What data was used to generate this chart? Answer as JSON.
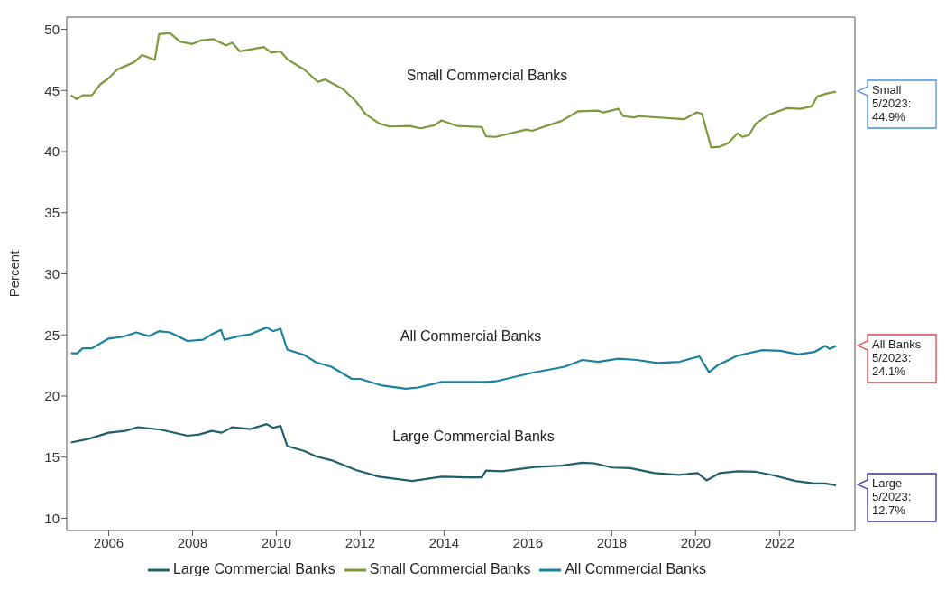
{
  "chart_data": {
    "type": "line",
    "ylabel": "Percent",
    "xlim": [
      2005.0,
      2023.8
    ],
    "xticks": [
      2006,
      2008,
      2010,
      2012,
      2014,
      2016,
      2018,
      2020,
      2022
    ],
    "ylim": [
      9,
      51
    ],
    "yticks": [
      10,
      15,
      20,
      25,
      30,
      35,
      40,
      45,
      50
    ],
    "grid": false,
    "legend": "bottom",
    "marker": "none",
    "line_style": "solid",
    "series": [
      {
        "name": "Large Commercial Banks",
        "color": "#1f5f6e",
        "x": [
          2005.1,
          2005.53,
          2006.0,
          2006.39,
          2006.7,
          2007.24,
          2007.88,
          2008.16,
          2008.46,
          2008.7,
          2008.95,
          2009.38,
          2009.77,
          2009.92,
          2010.1,
          2010.26,
          2010.67,
          2010.95,
          2011.31,
          2011.9,
          2012.45,
          2013.24,
          2013.94,
          2014.52,
          2014.9,
          2015.0,
          2015.38,
          2016.17,
          2016.8,
          2017.3,
          2017.58,
          2018.01,
          2018.44,
          2019.02,
          2019.6,
          2020.05,
          2020.26,
          2020.58,
          2021.0,
          2021.44,
          2021.87,
          2022.38,
          2022.83,
          2023.09,
          2023.35
        ],
        "values": [
          16.2,
          16.5,
          17.0,
          17.15,
          17.45,
          17.25,
          16.75,
          16.85,
          17.15,
          17.0,
          17.45,
          17.3,
          17.7,
          17.4,
          17.55,
          15.9,
          15.5,
          15.05,
          14.75,
          13.95,
          13.4,
          13.05,
          13.4,
          13.35,
          13.35,
          13.9,
          13.85,
          14.2,
          14.3,
          14.55,
          14.5,
          14.15,
          14.1,
          13.7,
          13.55,
          13.7,
          13.1,
          13.7,
          13.85,
          13.8,
          13.5,
          13.05,
          12.85,
          12.85,
          12.7
        ]
      },
      {
        "name": "Small Commercial Banks",
        "color": "#7a9a3c",
        "x": [
          2005.1,
          2005.24,
          2005.38,
          2005.6,
          2005.8,
          2006.0,
          2006.2,
          2006.6,
          2006.8,
          2007.1,
          2007.2,
          2007.46,
          2007.7,
          2008.0,
          2008.2,
          2008.5,
          2008.8,
          2008.95,
          2009.13,
          2009.7,
          2009.88,
          2010.1,
          2010.28,
          2010.67,
          2010.99,
          2011.16,
          2011.6,
          2011.9,
          2012.12,
          2012.45,
          2012.7,
          2013.17,
          2013.45,
          2013.77,
          2013.94,
          2014.3,
          2014.9,
          2015.0,
          2015.23,
          2015.96,
          2016.1,
          2016.8,
          2017.2,
          2017.67,
          2017.8,
          2018.16,
          2018.27,
          2018.53,
          2018.65,
          2019.73,
          2020.02,
          2020.15,
          2020.37,
          2020.58,
          2020.78,
          2021.0,
          2021.12,
          2021.27,
          2021.44,
          2021.74,
          2022.17,
          2022.5,
          2022.77,
          2022.9,
          2023.13,
          2023.35
        ],
        "values": [
          44.6,
          44.3,
          44.6,
          44.6,
          45.5,
          46.0,
          46.7,
          47.3,
          47.9,
          47.5,
          49.6,
          49.7,
          49.0,
          48.8,
          49.1,
          49.2,
          48.7,
          48.9,
          48.2,
          48.55,
          48.1,
          48.2,
          47.5,
          46.7,
          45.7,
          45.9,
          45.1,
          44.1,
          43.1,
          42.3,
          42.05,
          42.1,
          41.9,
          42.15,
          42.55,
          42.1,
          42.0,
          41.25,
          41.2,
          41.8,
          41.7,
          42.5,
          43.3,
          43.35,
          43.2,
          43.5,
          42.9,
          42.8,
          42.9,
          42.65,
          43.2,
          43.1,
          40.35,
          40.4,
          40.7,
          41.5,
          41.2,
          41.35,
          42.3,
          43.0,
          43.55,
          43.5,
          43.7,
          44.5,
          44.75,
          44.9
        ]
      },
      {
        "name": "All Commercial Banks",
        "color": "#1a82a0",
        "x": [
          2005.1,
          2005.25,
          2005.38,
          2005.6,
          2006.0,
          2006.35,
          2006.66,
          2006.96,
          2007.2,
          2007.46,
          2007.88,
          2008.25,
          2008.46,
          2008.68,
          2008.76,
          2009.1,
          2009.38,
          2009.77,
          2009.92,
          2010.1,
          2010.26,
          2010.67,
          2010.95,
          2011.31,
          2011.8,
          2012.0,
          2012.53,
          2013.09,
          2013.39,
          2013.94,
          2014.52,
          2015.0,
          2015.23,
          2016.1,
          2016.88,
          2017.3,
          2017.67,
          2018.16,
          2018.6,
          2019.08,
          2019.62,
          2020.09,
          2020.32,
          2020.52,
          2021.0,
          2021.59,
          2022.02,
          2022.45,
          2022.83,
          2023.09,
          2023.2,
          2023.35
        ],
        "values": [
          23.5,
          23.5,
          23.9,
          23.9,
          24.7,
          24.85,
          25.2,
          24.9,
          25.3,
          25.2,
          24.5,
          24.6,
          25.05,
          25.4,
          24.6,
          24.9,
          25.05,
          25.6,
          25.3,
          25.5,
          23.8,
          23.35,
          22.75,
          22.4,
          21.4,
          21.4,
          20.85,
          20.6,
          20.7,
          21.15,
          21.15,
          21.15,
          21.2,
          21.9,
          22.4,
          22.95,
          22.8,
          23.05,
          22.95,
          22.7,
          22.8,
          23.25,
          21.95,
          22.5,
          23.3,
          23.75,
          23.7,
          23.4,
          23.6,
          24.1,
          23.85,
          24.1
        ]
      }
    ],
    "annotations": [
      "Small Commercial Banks",
      "All Commercial Banks",
      "Large Commercial Banks",
      "Small 5/2023: 44.9%",
      "All Banks 5/2023: 24.1%",
      "Large 5/2023: 12.7%"
    ]
  }
}
